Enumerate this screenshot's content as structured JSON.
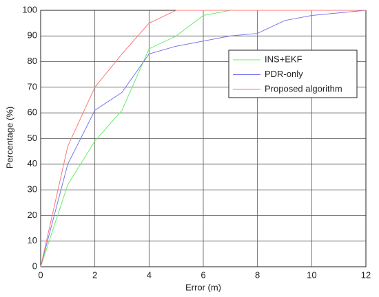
{
  "chart_data": {
    "type": "line",
    "x_label": "Error (m)",
    "y_label": "Percentage (%)",
    "x": [
      0,
      1,
      2,
      3,
      4,
      5,
      6,
      7,
      8,
      9,
      10,
      11,
      12
    ],
    "series": [
      {
        "name": "INS+EKF",
        "color": "#66ee66",
        "values": [
          0,
          32,
          49,
          61,
          85,
          90,
          98,
          100,
          100,
          100,
          100,
          100,
          100
        ]
      },
      {
        "name": "PDR-only",
        "color": "#7777ee",
        "values": [
          0,
          40,
          61,
          68,
          83,
          86,
          88,
          90,
          91,
          96,
          98,
          99,
          100
        ]
      },
      {
        "name": "Proposed algorithm",
        "color": "#ff7777",
        "values": [
          0,
          47,
          70,
          83,
          95,
          100,
          100,
          100,
          100,
          100,
          100,
          100,
          100
        ]
      }
    ],
    "xlim": [
      0,
      12
    ],
    "xticks": [
      0,
      2,
      4,
      6,
      8,
      10,
      12
    ],
    "ylim": [
      0,
      100
    ],
    "yticks": [
      0,
      10,
      20,
      30,
      40,
      50,
      60,
      70,
      80,
      90,
      100
    ],
    "grid": true,
    "legend": "northeast"
  }
}
